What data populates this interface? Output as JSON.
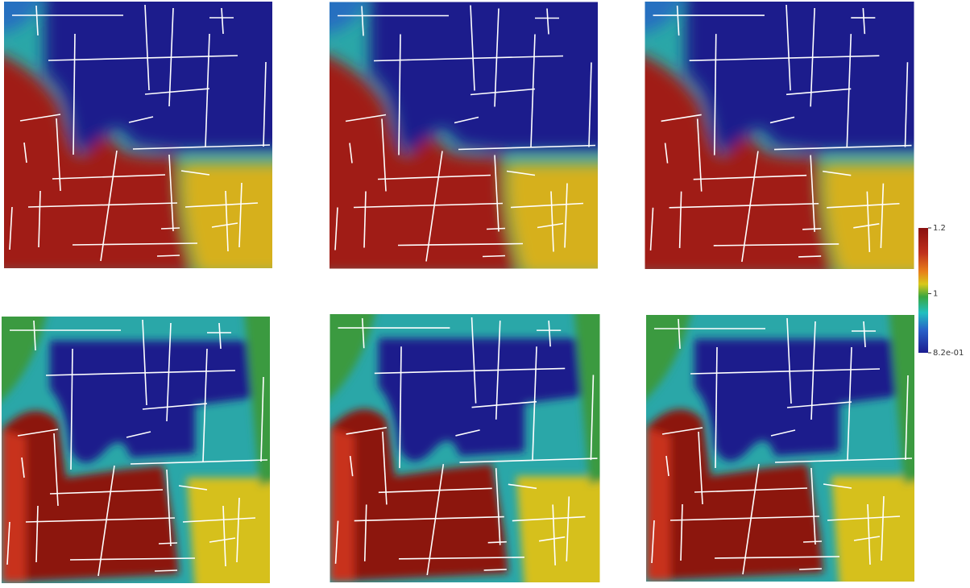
{
  "colorbar": {
    "range": [
      0.82,
      1.2
    ],
    "ticks": [
      1.2,
      1,
      {
        "value": 0.82,
        "label": "8.2e-01"
      }
    ]
  }
}
